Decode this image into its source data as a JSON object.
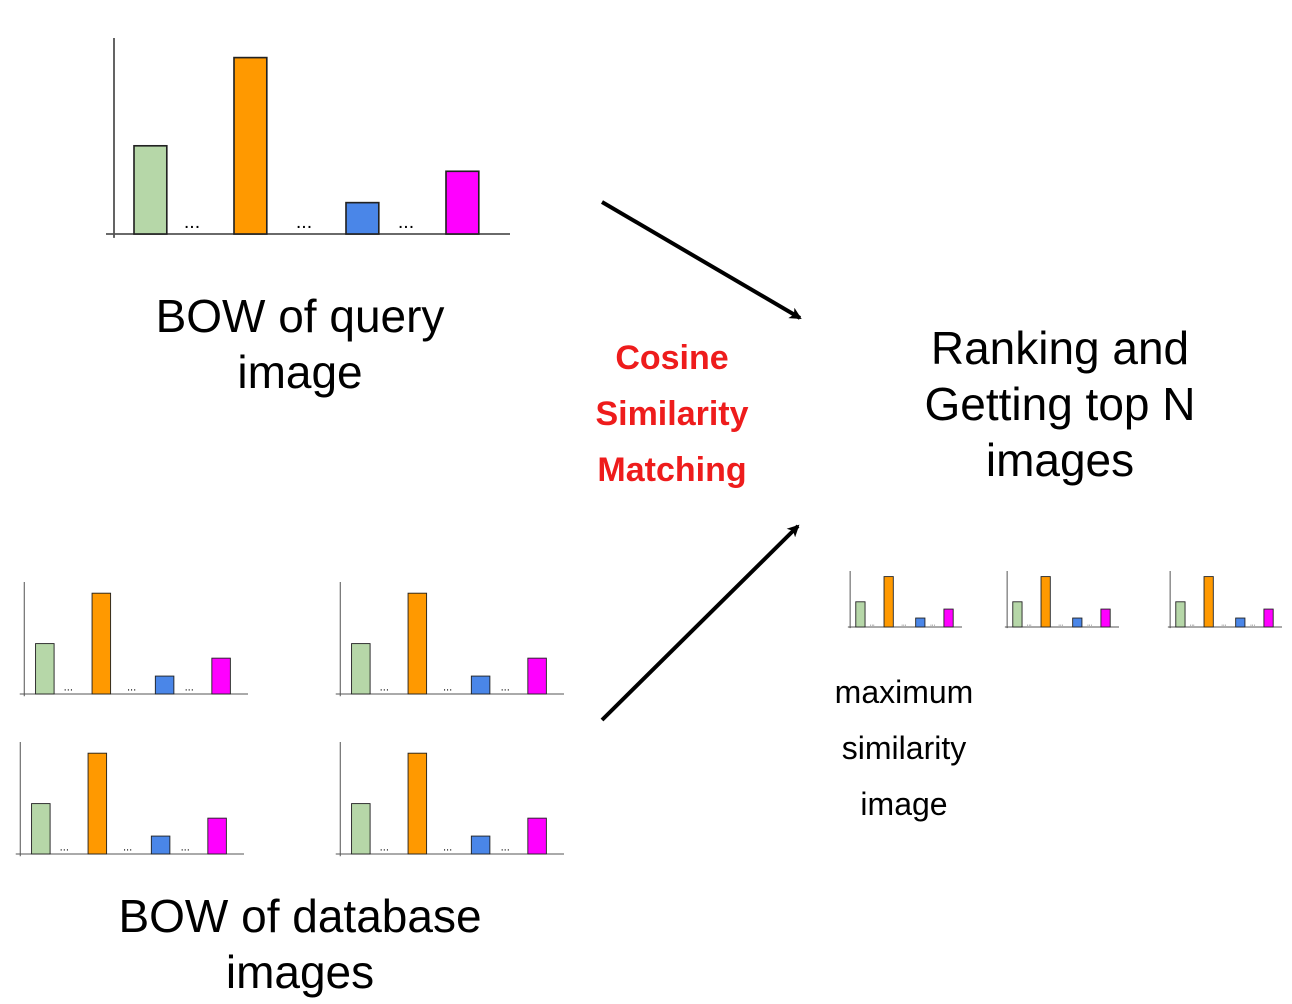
{
  "labels": {
    "query": [
      "BOW of query",
      "image"
    ],
    "database": [
      "BOW of database",
      "images"
    ],
    "ranking": [
      "Ranking and",
      "Getting top N",
      "images"
    ],
    "cosine": [
      "Cosine",
      "Similarity",
      "Matching"
    ],
    "maxsim": [
      "maximum",
      "similarity",
      "image"
    ]
  },
  "histogram": {
    "bars": [
      {
        "name": "green",
        "value": 0.45,
        "color": "#b6d7a8"
      },
      {
        "name": "orange",
        "value": 0.9,
        "color": "#ff9900"
      },
      {
        "name": "blue",
        "value": 0.16,
        "color": "#4a86e8"
      },
      {
        "name": "magenta",
        "value": 0.32,
        "color": "#ff00ff"
      }
    ],
    "ellipsis": "..."
  }
}
